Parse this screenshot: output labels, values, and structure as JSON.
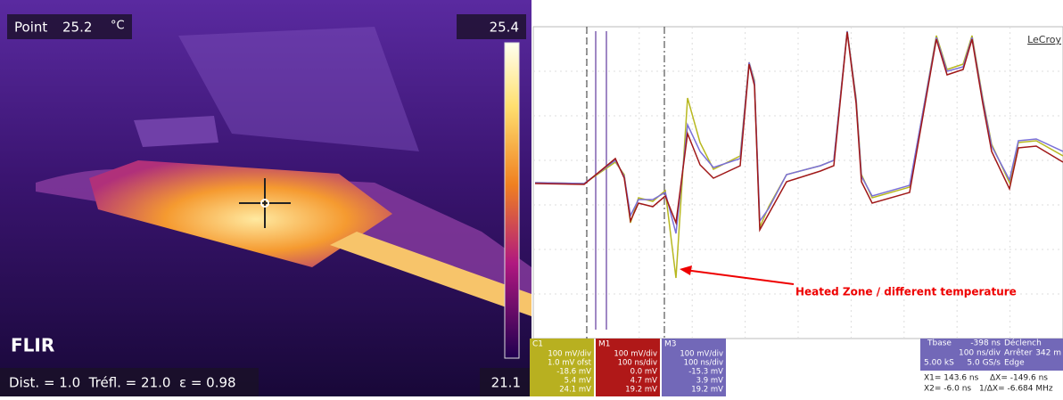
{
  "thermal": {
    "spot_label": "Point",
    "spot_value": "25.2",
    "unit": "°C",
    "scale_max": "25.4",
    "scale_min": "21.1",
    "brand": "FLIR",
    "params": "Dist. = 1.0  Tréfl. = 21.0  ε = 0.98"
  },
  "scope": {
    "brand": "LeCroy",
    "annotation": "Heated Zone / different temperature",
    "channels": [
      {
        "name": "C1",
        "lines": [
          "100 mV/div",
          "1.0 mV ofst",
          "-18.6 mV",
          "5.4 mV",
          "24.1 mV"
        ]
      },
      {
        "name": "M1",
        "lines": [
          "100 mV/div",
          "100 ns/div",
          "0.0 mV",
          "4.7 mV",
          "19.2 mV"
        ]
      },
      {
        "name": "M3",
        "lines": [
          "100 mV/div",
          "100 ns/div",
          "-15.3 mV",
          "3.9 mV",
          "19.2 mV"
        ]
      }
    ],
    "timebase": {
      "label": "Tbase",
      "delay": "-398 ns",
      "trigger": "Déclench",
      "div": "100 ns/div",
      "stop": "Arrêter",
      "level": "342 m",
      "samples": "5.00 kS",
      "rate": "5.0 GS/s",
      "mode": "Edge",
      "x1": "X1= 143.6 ns",
      "dx": "ΔX= -149.6 ns",
      "x2": "X2= -6.0 ns",
      "inv": "1/ΔX= -6.684 MHz"
    }
  }
}
